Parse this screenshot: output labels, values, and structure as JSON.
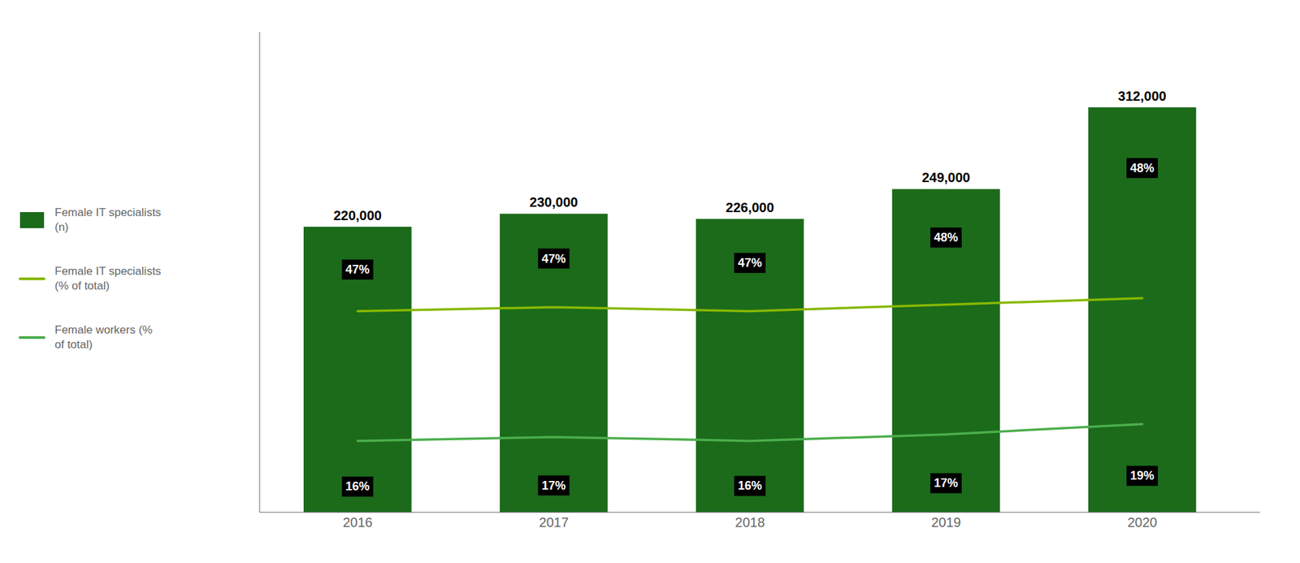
{
  "chart_data": {
    "type": "bar",
    "x": [
      2016,
      2017,
      2018,
      2019,
      2020
    ],
    "xlim": [
      2015.5,
      2020.6
    ],
    "xticks": [
      2016,
      2017,
      2018,
      2019,
      2020
    ],
    "ylim": [
      0,
      370000
    ],
    "tick_labels": "x",
    "data_labels": true,
    "legend": "left",
    "series": [
      {
        "name": "Female IT specialists\n(n)",
        "type": "bar",
        "color": "#1b6b1b",
        "values": [
          220000,
          230000,
          226000,
          249000,
          312000
        ],
        "value_labels": [
          "220,000",
          "230,000",
          "226,000",
          "249,000",
          "312,000"
        ]
      },
      {
        "name": "Female IT specialists\n(% of total)",
        "type": "line",
        "color": "#88b800",
        "values": [
          155000,
          158000,
          155000,
          160000,
          165000
        ]
      },
      {
        "name": "Female workers (%\nof total)",
        "type": "line",
        "color": "#4cae4c",
        "values": [
          55000,
          58000,
          55000,
          60000,
          68000
        ]
      }
    ],
    "annotations": [
      {
        "x": 2016,
        "text": "47%"
      },
      {
        "x": 2016,
        "text": "16%"
      },
      {
        "x": 2017,
        "text": "47%"
      },
      {
        "x": 2017,
        "text": "17%"
      },
      {
        "x": 2018,
        "text": "47%"
      },
      {
        "x": 2018,
        "text": "16%"
      },
      {
        "x": 2019,
        "text": "48%"
      },
      {
        "x": 2019,
        "text": "17%"
      },
      {
        "x": 2020,
        "text": "48%"
      },
      {
        "x": 2020,
        "text": "19%"
      }
    ]
  }
}
